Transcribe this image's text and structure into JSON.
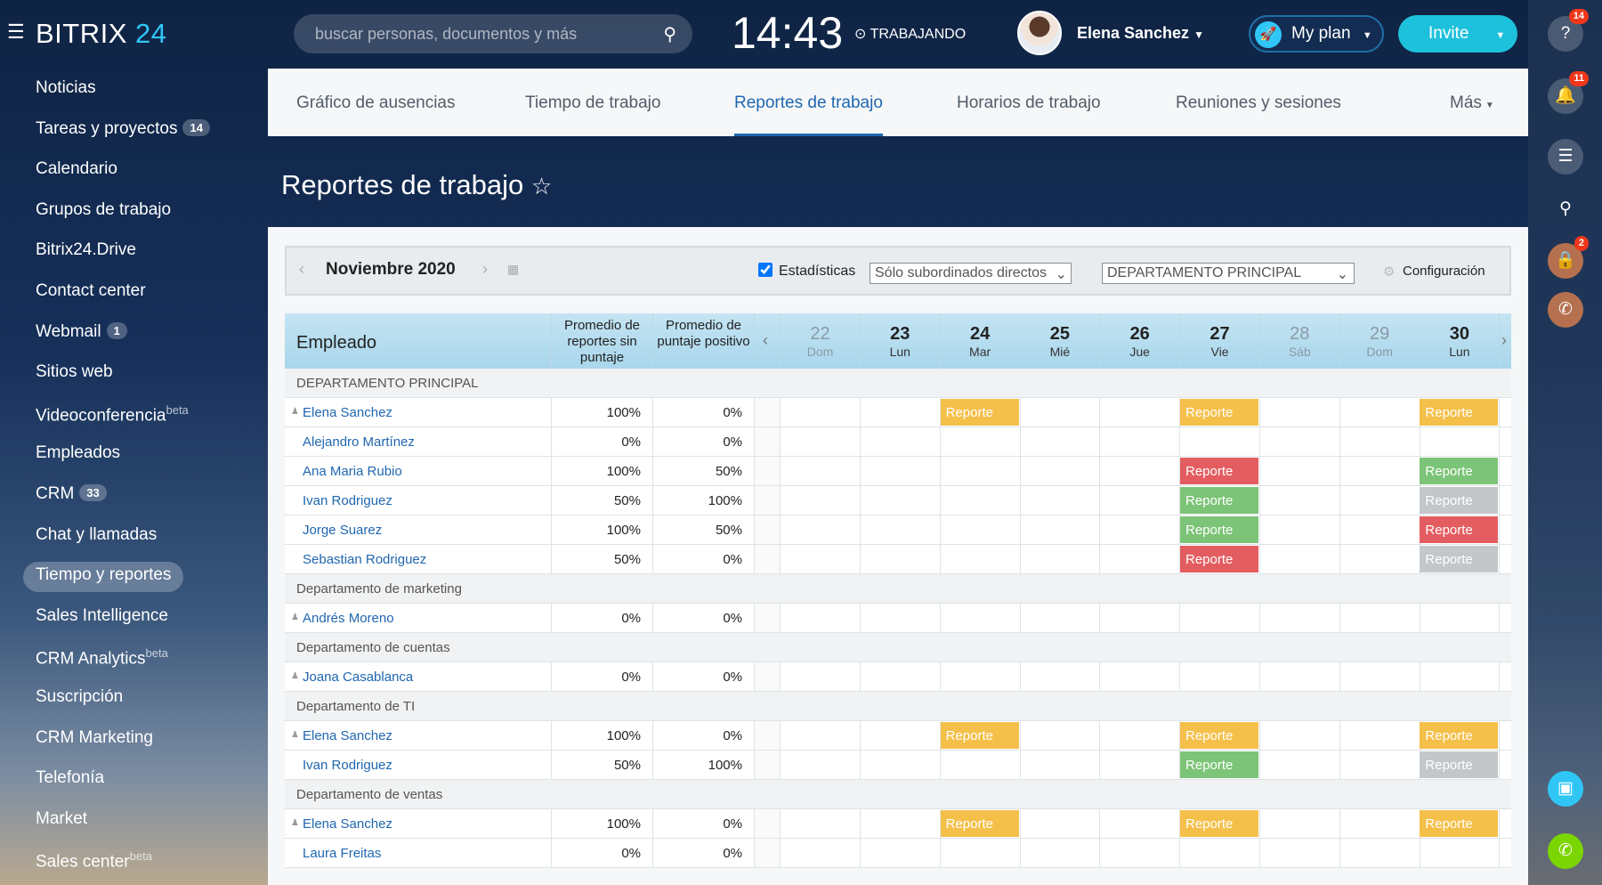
{
  "header": {
    "logo_main": "BITRIX",
    "logo_num": "24",
    "search_placeholder": "buscar personas, documentos y más",
    "clock": "14:43",
    "status": "TRABAJANDO",
    "user_name": "Elena Sanchez",
    "my_plan": "My plan",
    "invite": "Invite"
  },
  "right_panel": {
    "help_badge": "14",
    "notifications_badge": "11",
    "lock_badge": "2"
  },
  "sidebar": {
    "items": [
      {
        "label": "Noticias"
      },
      {
        "label": "Tareas y proyectos",
        "count": "14"
      },
      {
        "label": "Calendario"
      },
      {
        "label": "Grupos de trabajo"
      },
      {
        "label": "Bitrix24.Drive"
      },
      {
        "label": "Contact center"
      },
      {
        "label": "Webmail",
        "count": "1"
      },
      {
        "label": "Sitios web"
      },
      {
        "label": "Videoconferencia",
        "sup": "beta"
      },
      {
        "label": "Empleados"
      },
      {
        "label": "CRM",
        "count": "33"
      },
      {
        "label": "Chat y llamadas"
      },
      {
        "label": "Tiempo y reportes",
        "active": true
      },
      {
        "label": "Sales Intelligence"
      },
      {
        "label": "CRM Analytics",
        "sup": "beta"
      },
      {
        "label": "Suscripción"
      },
      {
        "label": "CRM Marketing"
      },
      {
        "label": "Telefonía"
      },
      {
        "label": "Market"
      },
      {
        "label": "Sales center",
        "sup": "beta"
      }
    ]
  },
  "tabs": [
    {
      "label": "Gráfico de ausencias"
    },
    {
      "label": "Tiempo de trabajo"
    },
    {
      "label": "Reportes de trabajo",
      "active": true
    },
    {
      "label": "Horarios de trabajo"
    },
    {
      "label": "Reuniones y sesiones"
    },
    {
      "label": "Más"
    }
  ],
  "page_title": "Reportes de trabajo",
  "filter": {
    "month": "Noviembre 2020",
    "stats_label": "Estadísticas",
    "stats_checked": true,
    "scope": "Sólo subordinados directos",
    "department": "DEPARTAMENTO PRINCIPAL",
    "settings": "Configuración"
  },
  "table": {
    "col_employee": "Empleado",
    "col_avg_unrated": "Promedio de reportes sin puntaje",
    "col_avg_positive": "Promedio de puntaje positivo",
    "days": [
      {
        "n": "22",
        "d": "Dom",
        "weekend": true
      },
      {
        "n": "23",
        "d": "Lun"
      },
      {
        "n": "24",
        "d": "Mar"
      },
      {
        "n": "25",
        "d": "Mié"
      },
      {
        "n": "26",
        "d": "Jue"
      },
      {
        "n": "27",
        "d": "Vie"
      },
      {
        "n": "28",
        "d": "Sáb",
        "weekend": true
      },
      {
        "n": "29",
        "d": "Dom",
        "weekend": true
      },
      {
        "n": "30",
        "d": "Lun"
      }
    ],
    "report_label": "Reporte",
    "status_colors": {
      "pending": "#f5c04a",
      "negative": "#e35d60",
      "positive": "#7cc477",
      "unrated": "#c4c7ca"
    },
    "groups": [
      {
        "name": "DEPARTAMENTO PRINCIPAL",
        "rows": [
          {
            "name": "Elena Sanchez",
            "head": true,
            "unrated": "100%",
            "positive": "0%",
            "reports": {
              "24": "pending",
              "27": "pending",
              "30": "pending"
            }
          },
          {
            "name": "Alejandro Martínez",
            "unrated": "0%",
            "positive": "0%",
            "reports": {}
          },
          {
            "name": "Ana Maria Rubio",
            "unrated": "100%",
            "positive": "50%",
            "reports": {
              "27": "negative",
              "30": "positive"
            }
          },
          {
            "name": "Ivan Rodriguez",
            "unrated": "50%",
            "positive": "100%",
            "reports": {
              "27": "positive",
              "30": "unrated"
            }
          },
          {
            "name": "Jorge Suarez",
            "unrated": "100%",
            "positive": "50%",
            "reports": {
              "27": "positive",
              "30": "negative"
            }
          },
          {
            "name": "Sebastian Rodriguez",
            "unrated": "50%",
            "positive": "0%",
            "reports": {
              "27": "negative",
              "30": "unrated"
            }
          }
        ]
      },
      {
        "name": "Departamento de marketing",
        "rows": [
          {
            "name": "Andrés Moreno",
            "head": true,
            "unrated": "0%",
            "positive": "0%",
            "reports": {}
          }
        ]
      },
      {
        "name": "Departamento de cuentas",
        "rows": [
          {
            "name": "Joana Casablanca",
            "head": true,
            "unrated": "0%",
            "positive": "0%",
            "reports": {}
          }
        ]
      },
      {
        "name": "Departamento de TI",
        "rows": [
          {
            "name": "Elena Sanchez",
            "head": true,
            "unrated": "100%",
            "positive": "0%",
            "reports": {
              "24": "pending",
              "27": "pending",
              "30": "pending"
            }
          },
          {
            "name": "Ivan Rodriguez",
            "unrated": "50%",
            "positive": "100%",
            "reports": {
              "27": "positive",
              "30": "unrated"
            }
          }
        ]
      },
      {
        "name": "Departamento de ventas",
        "rows": [
          {
            "name": "Elena Sanchez",
            "head": true,
            "unrated": "100%",
            "positive": "0%",
            "reports": {
              "24": "pending",
              "27": "pending",
              "30": "pending"
            }
          },
          {
            "name": "Laura Freitas",
            "unrated": "0%",
            "positive": "0%",
            "reports": {}
          }
        ]
      }
    ]
  }
}
